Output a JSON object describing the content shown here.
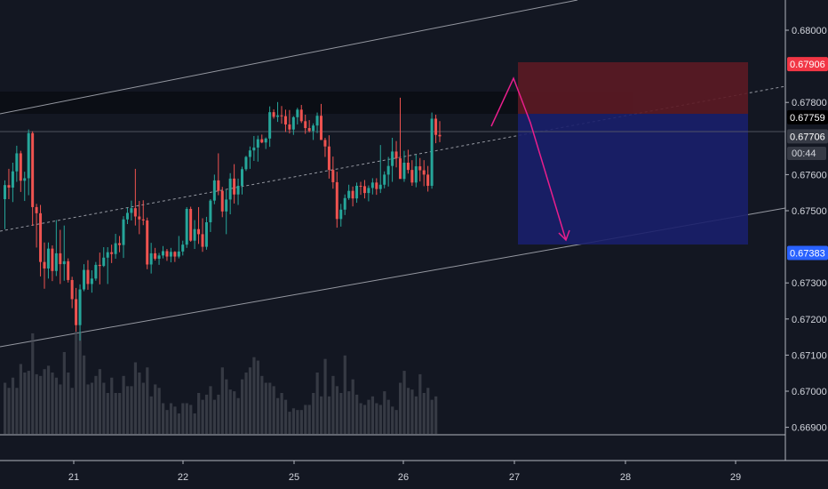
{
  "chart_data": {
    "type": "candlestick",
    "y_axis": {
      "ticks": [
        "0.68000",
        "0.67800",
        "0.67600",
        "0.67500",
        "0.67300",
        "0.67200",
        "0.67100",
        "0.67000",
        "0.66900"
      ],
      "tick_values": [
        0.68,
        0.678,
        0.676,
        0.675,
        0.673,
        0.672,
        0.671,
        0.67,
        0.669
      ],
      "partially_hidden_tick": "0.67400",
      "range": [
        0.6683,
        0.6813
      ]
    },
    "x_axis": {
      "ticks": [
        "21",
        "22",
        "25",
        "26",
        "27",
        "28",
        "29"
      ]
    },
    "price_labels": [
      {
        "value": 0.67906,
        "text": "0.67906",
        "bg": "#f23645",
        "fg": "#ffffff"
      },
      {
        "value": 0.67759,
        "text": "0.67759",
        "bg": "#000000",
        "fg": "#ffffff"
      },
      {
        "value": 0.67706,
        "text": "0.67706",
        "bg": "#363a45",
        "fg": "#ffffff"
      },
      {
        "value": 0.67383,
        "text": "0.67383",
        "bg": "#2962ff",
        "fg": "#ffffff"
      }
    ],
    "countdown": "00:44",
    "trade_setup": {
      "direction": "short",
      "entry": 0.67759,
      "stop_loss": 0.67906,
      "take_profit": 0.67383
    },
    "colors": {
      "up": "#26a69a",
      "down": "#ef5350",
      "background": "#131722",
      "risk_zone": "#5c1a24",
      "reward_zone": "#1a1f6b",
      "projection": "#e91e8c",
      "channel": "#9598a1"
    },
    "candles_ohlc": [
      [
        0.67532,
        0.67584,
        0.67449,
        0.67571
      ],
      [
        0.67571,
        0.67616,
        0.67532,
        0.67564
      ],
      [
        0.67564,
        0.67633,
        0.67524,
        0.67609
      ],
      [
        0.67609,
        0.6768,
        0.6758,
        0.67659
      ],
      [
        0.67659,
        0.67666,
        0.67552,
        0.67583
      ],
      [
        0.67583,
        0.67608,
        0.67527,
        0.6759
      ],
      [
        0.6759,
        0.67725,
        0.67543,
        0.67715
      ],
      [
        0.67715,
        0.6772,
        0.67458,
        0.6751
      ],
      [
        0.6751,
        0.67519,
        0.67398,
        0.67493
      ],
      [
        0.67493,
        0.67516,
        0.67318,
        0.67358
      ],
      [
        0.67358,
        0.67412,
        0.67284,
        0.6734
      ],
      [
        0.6734,
        0.67412,
        0.67312,
        0.67395
      ],
      [
        0.67395,
        0.67404,
        0.67305,
        0.67333
      ],
      [
        0.67333,
        0.67474,
        0.67319,
        0.67382
      ],
      [
        0.67382,
        0.67447,
        0.67297,
        0.67352
      ],
      [
        0.67352,
        0.67459,
        0.67306,
        0.6736
      ],
      [
        0.6736,
        0.67368,
        0.67301,
        0.67308
      ],
      [
        0.67308,
        0.67317,
        0.6723,
        0.67255
      ],
      [
        0.67255,
        0.67286,
        0.67165,
        0.67183
      ],
      [
        0.67183,
        0.67296,
        0.6714,
        0.67282
      ],
      [
        0.67282,
        0.67352,
        0.67277,
        0.67336
      ],
      [
        0.67336,
        0.67363,
        0.67281,
        0.67297
      ],
      [
        0.67297,
        0.67335,
        0.67273,
        0.67312
      ],
      [
        0.67312,
        0.67358,
        0.67306,
        0.6735
      ],
      [
        0.6735,
        0.67384,
        0.67296,
        0.67347
      ],
      [
        0.67347,
        0.67399,
        0.67344,
        0.6737
      ],
      [
        0.6737,
        0.67399,
        0.67297,
        0.67385
      ],
      [
        0.67385,
        0.67406,
        0.67355,
        0.6738
      ],
      [
        0.6738,
        0.67436,
        0.67367,
        0.6741
      ],
      [
        0.6741,
        0.6743,
        0.67385,
        0.67405
      ],
      [
        0.67405,
        0.67485,
        0.67369,
        0.67476
      ],
      [
        0.67476,
        0.67508,
        0.67463,
        0.67494
      ],
      [
        0.67494,
        0.67528,
        0.67473,
        0.67507
      ],
      [
        0.67507,
        0.67616,
        0.67459,
        0.67484
      ],
      [
        0.67484,
        0.67527,
        0.67435,
        0.67476
      ],
      [
        0.67476,
        0.67529,
        0.6746,
        0.67473
      ],
      [
        0.67473,
        0.67481,
        0.67338,
        0.67351
      ],
      [
        0.67351,
        0.67411,
        0.67326,
        0.67382
      ],
      [
        0.67382,
        0.67397,
        0.67362,
        0.67367
      ],
      [
        0.67367,
        0.67383,
        0.6735,
        0.67376
      ],
      [
        0.67376,
        0.67402,
        0.67368,
        0.67388
      ],
      [
        0.67388,
        0.67394,
        0.67361,
        0.67373
      ],
      [
        0.67373,
        0.67397,
        0.67357,
        0.67386
      ],
      [
        0.67386,
        0.67388,
        0.67358,
        0.67373
      ],
      [
        0.67373,
        0.6743,
        0.67368,
        0.67387
      ],
      [
        0.67387,
        0.67417,
        0.67376,
        0.67406
      ],
      [
        0.67406,
        0.6751,
        0.67397,
        0.67505
      ],
      [
        0.67505,
        0.67511,
        0.67414,
        0.67417
      ],
      [
        0.67417,
        0.67474,
        0.67394,
        0.67449
      ],
      [
        0.67449,
        0.6751,
        0.67408,
        0.67435
      ],
      [
        0.67435,
        0.67479,
        0.67386,
        0.674
      ],
      [
        0.674,
        0.67483,
        0.67392,
        0.67468
      ],
      [
        0.67468,
        0.67532,
        0.67441,
        0.67528
      ],
      [
        0.67528,
        0.676,
        0.67518,
        0.67584
      ],
      [
        0.67584,
        0.67659,
        0.67543,
        0.67555
      ],
      [
        0.67555,
        0.67566,
        0.67482,
        0.67498
      ],
      [
        0.67498,
        0.67557,
        0.67435,
        0.67531
      ],
      [
        0.67531,
        0.67604,
        0.6749,
        0.67589
      ],
      [
        0.67589,
        0.67629,
        0.6752,
        0.67545
      ],
      [
        0.67545,
        0.67589,
        0.67516,
        0.67569
      ],
      [
        0.67569,
        0.67622,
        0.67545,
        0.67615
      ],
      [
        0.67615,
        0.67652,
        0.6761,
        0.67649
      ],
      [
        0.67649,
        0.67678,
        0.67616,
        0.67667
      ],
      [
        0.67667,
        0.67707,
        0.67638,
        0.67675
      ],
      [
        0.67675,
        0.67708,
        0.67636,
        0.67698
      ],
      [
        0.67698,
        0.67711,
        0.67687,
        0.67689
      ],
      [
        0.67689,
        0.67703,
        0.67671,
        0.677
      ],
      [
        0.677,
        0.67789,
        0.67677,
        0.67773
      ],
      [
        0.67773,
        0.67781,
        0.67755,
        0.6776
      ],
      [
        0.6776,
        0.67801,
        0.67746,
        0.67764
      ],
      [
        0.67764,
        0.6779,
        0.67741,
        0.67762
      ],
      [
        0.67762,
        0.6778,
        0.67718,
        0.67739
      ],
      [
        0.67739,
        0.67779,
        0.67714,
        0.67725
      ],
      [
        0.67725,
        0.67762,
        0.6771,
        0.67759
      ],
      [
        0.67759,
        0.67785,
        0.67739,
        0.6778
      ],
      [
        0.6778,
        0.67793,
        0.67743,
        0.67748
      ],
      [
        0.67748,
        0.67766,
        0.67713,
        0.67729
      ],
      [
        0.67729,
        0.67751,
        0.67717,
        0.67721
      ],
      [
        0.67721,
        0.67742,
        0.67696,
        0.67736
      ],
      [
        0.67736,
        0.67772,
        0.67715,
        0.67763
      ],
      [
        0.67763,
        0.67796,
        0.67708,
        0.67696
      ],
      [
        0.67696,
        0.67702,
        0.67649,
        0.67678
      ],
      [
        0.67678,
        0.67709,
        0.67589,
        0.67613
      ],
      [
        0.67613,
        0.6765,
        0.67561,
        0.67579
      ],
      [
        0.67579,
        0.67608,
        0.67453,
        0.67477
      ],
      [
        0.67477,
        0.67519,
        0.67456,
        0.67503
      ],
      [
        0.67503,
        0.67545,
        0.67488,
        0.67535
      ],
      [
        0.67535,
        0.67572,
        0.6753,
        0.67555
      ],
      [
        0.67555,
        0.67567,
        0.67512,
        0.67534
      ],
      [
        0.67534,
        0.67578,
        0.67522,
        0.67569
      ],
      [
        0.67569,
        0.6758,
        0.67544,
        0.67568
      ],
      [
        0.67568,
        0.67585,
        0.67534,
        0.67549
      ],
      [
        0.67549,
        0.6757,
        0.67526,
        0.67563
      ],
      [
        0.67563,
        0.6759,
        0.67545,
        0.67578
      ],
      [
        0.67578,
        0.6759,
        0.67544,
        0.6756
      ],
      [
        0.6756,
        0.67682,
        0.67549,
        0.67572
      ],
      [
        0.67572,
        0.67609,
        0.67562,
        0.676
      ],
      [
        0.676,
        0.67649,
        0.67567,
        0.67624
      ],
      [
        0.67624,
        0.67702,
        0.6758,
        0.67664
      ],
      [
        0.67664,
        0.67693,
        0.6762,
        0.67645
      ],
      [
        0.67645,
        0.67813,
        0.67631,
        0.67588
      ],
      [
        0.67588,
        0.67666,
        0.6758,
        0.67633
      ],
      [
        0.67633,
        0.67669,
        0.67603,
        0.67613
      ],
      [
        0.67613,
        0.6764,
        0.67569,
        0.67578
      ],
      [
        0.67578,
        0.67655,
        0.67565,
        0.67623
      ],
      [
        0.67623,
        0.67646,
        0.67581,
        0.67612
      ],
      [
        0.67612,
        0.6764,
        0.67568,
        0.676
      ],
      [
        0.676,
        0.67624,
        0.67553,
        0.67569
      ],
      [
        0.67569,
        0.67772,
        0.67561,
        0.67755
      ],
      [
        0.67755,
        0.67766,
        0.67687,
        0.6771
      ],
      [
        0.6771,
        0.67748,
        0.6769,
        0.67706
      ]
    ],
    "volume": [
      30,
      27,
      33,
      27,
      41,
      36,
      37,
      59,
      35,
      34,
      38,
      40,
      36,
      33,
      29,
      48,
      36,
      27,
      60,
      60,
      46,
      29,
      30,
      34,
      38,
      30,
      24,
      33,
      24,
      24,
      34,
      28,
      28,
      42,
      36,
      30,
      39,
      22,
      29,
      27,
      18,
      14,
      18,
      16,
      12,
      18,
      18,
      17,
      12,
      24,
      20,
      23,
      28,
      20,
      23,
      39,
      32,
      26,
      25,
      21,
      32,
      36,
      39,
      45,
      43,
      34,
      30,
      30,
      28,
      21,
      24,
      20,
      13,
      15,
      14,
      14,
      17,
      17,
      24,
      36,
      22,
      44,
      22,
      34,
      28,
      24,
      46,
      25,
      32,
      23,
      18,
      17,
      20,
      22,
      18,
      17,
      25,
      20,
      16,
      14,
      30,
      37,
      27,
      26,
      22,
      35,
      24,
      27,
      20,
      22
    ]
  }
}
